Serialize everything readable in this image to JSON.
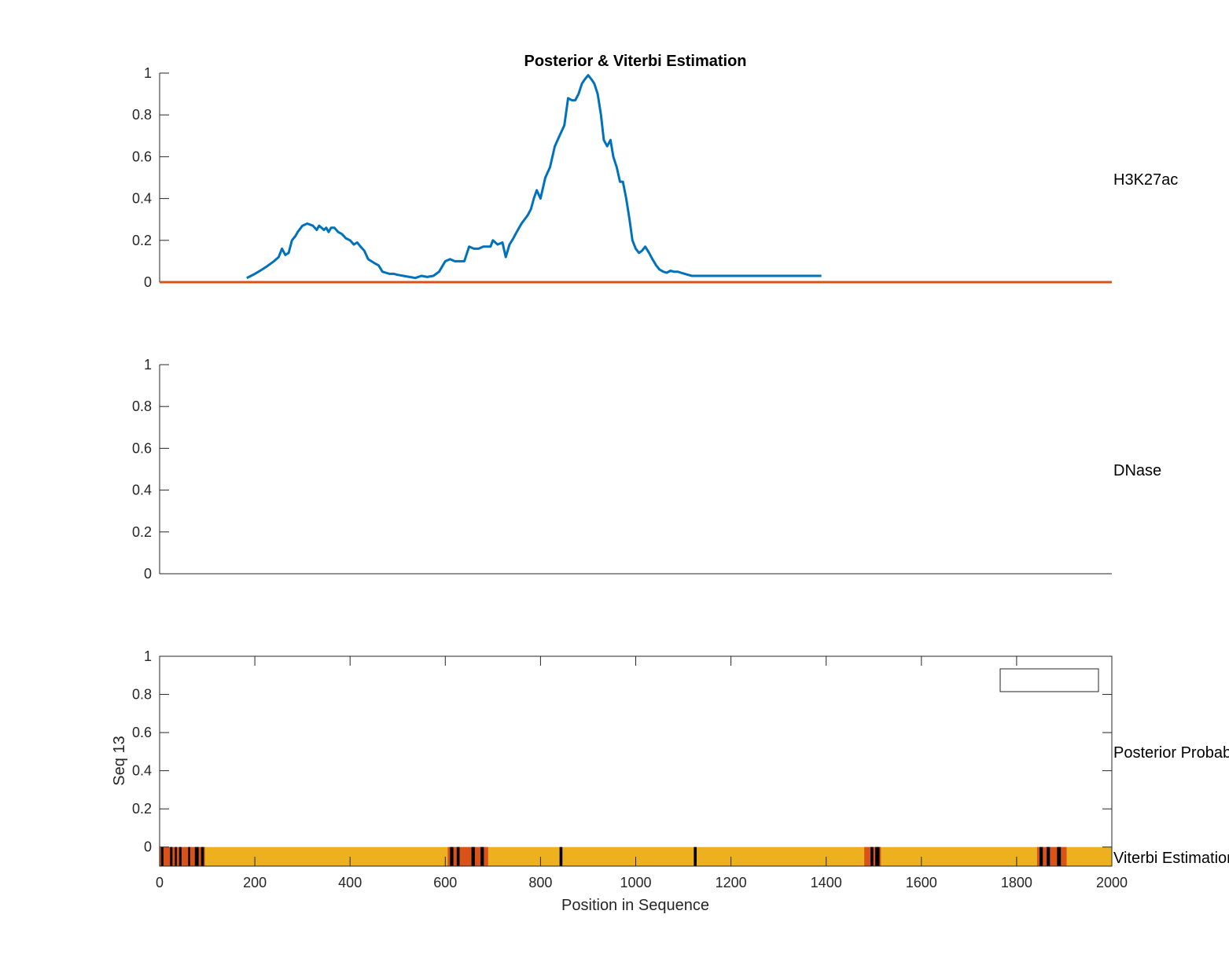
{
  "figure": {
    "title": "Posterior & Viterbi Estimation",
    "xlabel": "Position in Sequence",
    "x_ticks": [
      "0",
      "200",
      "400",
      "600",
      "800",
      "1000",
      "1200",
      "1400",
      "1600",
      "1800",
      "2000"
    ],
    "y_ticks": [
      "0",
      "0.2",
      "0.4",
      "0.6",
      "0.8",
      "1"
    ]
  },
  "chart_data": [
    {
      "type": "line",
      "side_label": "H3K27ac",
      "xlim": [
        0,
        2000
      ],
      "ylim": [
        0,
        1
      ],
      "grid": false,
      "series": [
        {
          "color": "#0072BD",
          "x": [
            183,
            192,
            200,
            215,
            228,
            240,
            250,
            257,
            264,
            271,
            278,
            285,
            290,
            300,
            310,
            322,
            330,
            335,
            340,
            345,
            350,
            355,
            360,
            367,
            375,
            383,
            391,
            400,
            408,
            415,
            422,
            430,
            438,
            445,
            452,
            460,
            468,
            475,
            483,
            492,
            500,
            512,
            525,
            537,
            550,
            562,
            575,
            587,
            600,
            610,
            620,
            630,
            640,
            650,
            660,
            670,
            680,
            688,
            695,
            700,
            710,
            720,
            727,
            735,
            743,
            750,
            760,
            773,
            780,
            786,
            792,
            800,
            810,
            820,
            830,
            840,
            850,
            858,
            866,
            873,
            880,
            887,
            893,
            900,
            907,
            913,
            920,
            927,
            933,
            940,
            947,
            953,
            960,
            967,
            973,
            980,
            987,
            993,
            1000,
            1007,
            1013,
            1020,
            1028,
            1035,
            1043,
            1050,
            1058,
            1065,
            1073,
            1080,
            1088,
            1095,
            1103,
            1110,
            1118,
            1125,
            1133,
            1140,
            1148,
            1155,
            1163,
            1172,
            1180,
            1190,
            1200,
            1212,
            1225,
            1237,
            1250,
            1262,
            1275,
            1287,
            1300,
            1312,
            1325,
            1337,
            1350,
            1370,
            1390
          ],
          "y": [
            0.02,
            0.03,
            0.04,
            0.06,
            0.08,
            0.1,
            0.12,
            0.16,
            0.13,
            0.14,
            0.2,
            0.22,
            0.24,
            0.27,
            0.28,
            0.27,
            0.25,
            0.27,
            0.26,
            0.25,
            0.26,
            0.24,
            0.26,
            0.26,
            0.24,
            0.23,
            0.21,
            0.2,
            0.18,
            0.19,
            0.17,
            0.15,
            0.11,
            0.1,
            0.09,
            0.08,
            0.05,
            0.045,
            0.04,
            0.04,
            0.035,
            0.03,
            0.025,
            0.02,
            0.03,
            0.025,
            0.03,
            0.05,
            0.1,
            0.11,
            0.1,
            0.1,
            0.1,
            0.17,
            0.16,
            0.16,
            0.17,
            0.17,
            0.17,
            0.2,
            0.18,
            0.19,
            0.12,
            0.18,
            0.21,
            0.24,
            0.28,
            0.32,
            0.35,
            0.4,
            0.44,
            0.4,
            0.5,
            0.55,
            0.65,
            0.7,
            0.75,
            0.88,
            0.87,
            0.87,
            0.9,
            0.95,
            0.97,
            0.99,
            0.97,
            0.95,
            0.9,
            0.8,
            0.68,
            0.65,
            0.68,
            0.6,
            0.55,
            0.48,
            0.48,
            0.4,
            0.3,
            0.2,
            0.16,
            0.14,
            0.15,
            0.17,
            0.14,
            0.11,
            0.08,
            0.06,
            0.05,
            0.045,
            0.055,
            0.05,
            0.05,
            0.045,
            0.04,
            0.035,
            0.03,
            0.03,
            0.03,
            0.03,
            0.03,
            0.03,
            0.03,
            0.03,
            0.03,
            0.03,
            0.03,
            0.03,
            0.03,
            0.03,
            0.03,
            0.03,
            0.03,
            0.03,
            0.03,
            0.03,
            0.03,
            0.03,
            0.03,
            0.03,
            0.03
          ]
        },
        {
          "color": "#D95319",
          "x": [
            0,
            2000
          ],
          "y": [
            0,
            0
          ]
        }
      ]
    },
    {
      "type": "line",
      "side_label": "DNase",
      "xlim": [
        0,
        2000
      ],
      "ylim": [
        0,
        1
      ],
      "grid": false,
      "series": []
    },
    {
      "type": "heatmap",
      "ylabel": "Seq 13",
      "side_label_posterior": "Posterior Probabilities",
      "side_label_viterbi": "Viterbi Estimation",
      "xlim": [
        0,
        2000
      ],
      "ylim": [
        -0.1,
        1
      ],
      "posterior": [],
      "viterbi": {
        "base_state_color": "#EDB120",
        "segments": [
          {
            "start": 0,
            "end": 95,
            "color": "#D95319"
          },
          {
            "start": 3,
            "end": 8,
            "color": "#000000"
          },
          {
            "start": 22,
            "end": 27,
            "color": "#000000"
          },
          {
            "start": 32,
            "end": 36,
            "color": "#000000"
          },
          {
            "start": 41,
            "end": 46,
            "color": "#000000"
          },
          {
            "start": 60,
            "end": 64,
            "color": "#000000"
          },
          {
            "start": 74,
            "end": 82,
            "color": "#000000"
          },
          {
            "start": 87,
            "end": 93,
            "color": "#000000"
          },
          {
            "start": 605,
            "end": 690,
            "color": "#D95319"
          },
          {
            "start": 610,
            "end": 617,
            "color": "#000000"
          },
          {
            "start": 624,
            "end": 630,
            "color": "#000000"
          },
          {
            "start": 655,
            "end": 662,
            "color": "#000000"
          },
          {
            "start": 674,
            "end": 681,
            "color": "#000000"
          },
          {
            "start": 840,
            "end": 846,
            "color": "#000000"
          },
          {
            "start": 1122,
            "end": 1128,
            "color": "#000000"
          },
          {
            "start": 1480,
            "end": 1515,
            "color": "#D95319"
          },
          {
            "start": 1493,
            "end": 1499,
            "color": "#000000"
          },
          {
            "start": 1503,
            "end": 1512,
            "color": "#000000"
          },
          {
            "start": 1843,
            "end": 1905,
            "color": "#D95319"
          },
          {
            "start": 1848,
            "end": 1855,
            "color": "#000000"
          },
          {
            "start": 1863,
            "end": 1870,
            "color": "#000000"
          },
          {
            "start": 1885,
            "end": 1893,
            "color": "#000000"
          }
        ]
      }
    }
  ]
}
